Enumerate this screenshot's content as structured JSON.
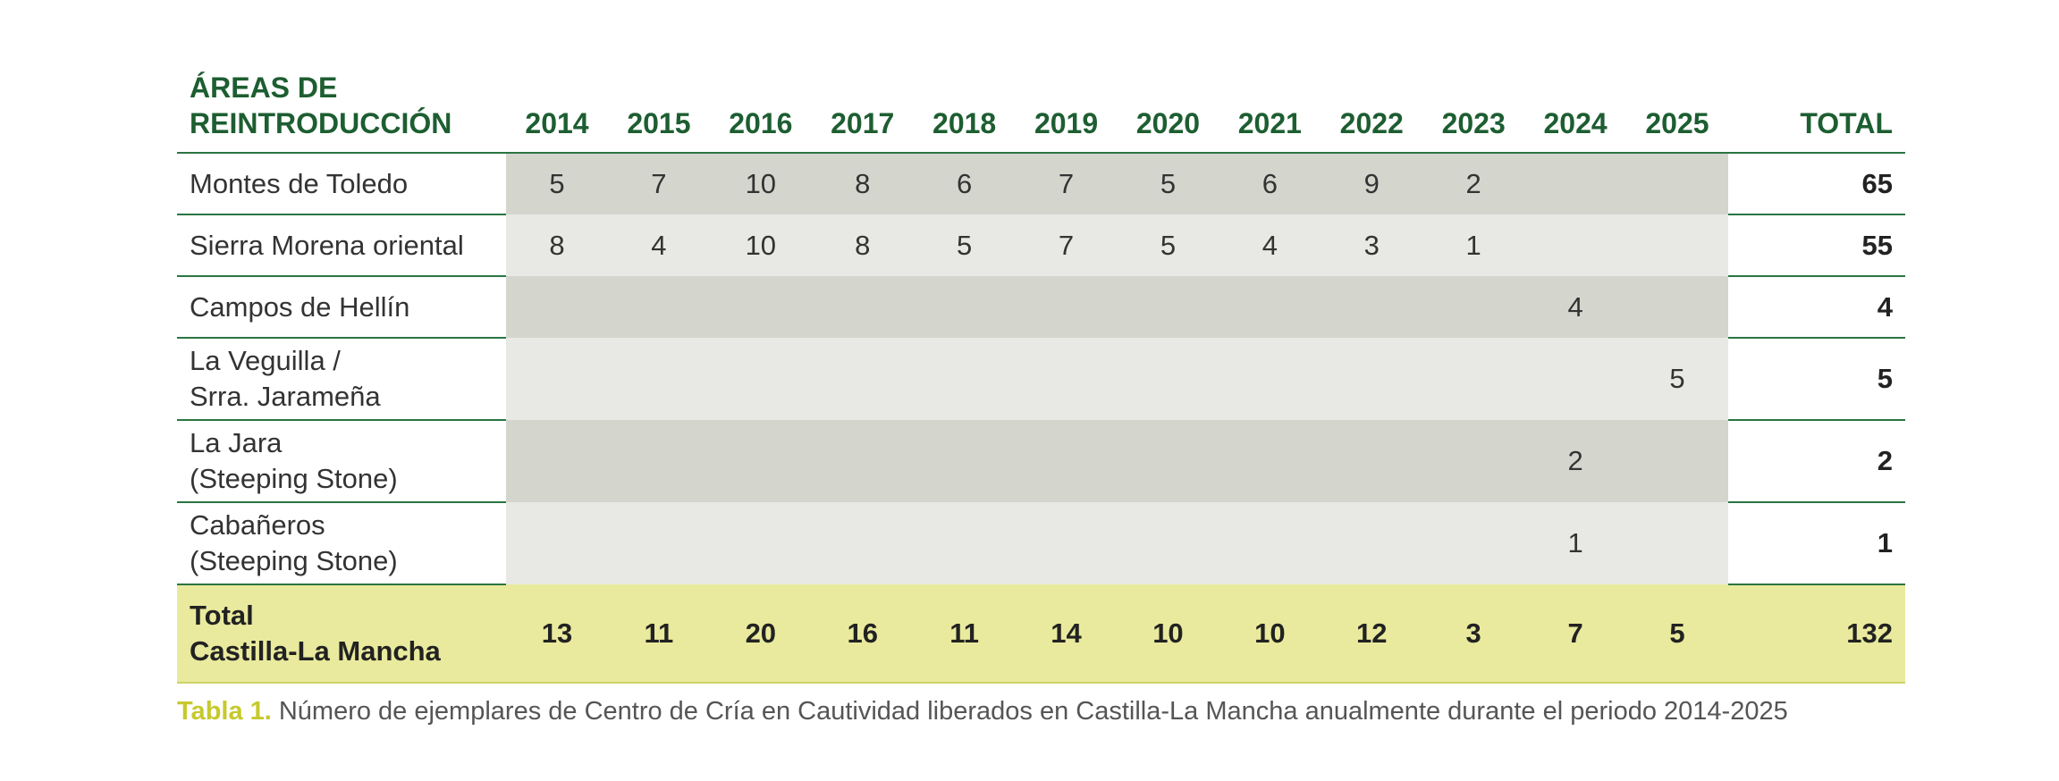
{
  "table": {
    "header": {
      "label": [
        "ÁREAS DE",
        "REINTRODUCCIÓN"
      ],
      "years": [
        "2014",
        "2015",
        "2016",
        "2017",
        "2018",
        "2019",
        "2020",
        "2021",
        "2022",
        "2023",
        "2024",
        "2025"
      ],
      "total": "TOTAL"
    },
    "rows": [
      {
        "label": [
          "Montes de Toledo"
        ],
        "values": [
          5,
          7,
          10,
          8,
          6,
          7,
          5,
          6,
          9,
          2,
          null,
          null
        ],
        "total": 65
      },
      {
        "label": [
          "Sierra Morena oriental"
        ],
        "values": [
          8,
          4,
          10,
          8,
          5,
          7,
          5,
          4,
          3,
          1,
          null,
          null
        ],
        "total": 55
      },
      {
        "label": [
          "Campos de Hellín"
        ],
        "values": [
          null,
          null,
          null,
          null,
          null,
          null,
          null,
          null,
          null,
          null,
          4,
          null
        ],
        "total": 4
      },
      {
        "label": [
          "La Veguilla /",
          "Srra. Jarameña"
        ],
        "values": [
          null,
          null,
          null,
          null,
          null,
          null,
          null,
          null,
          null,
          null,
          null,
          5
        ],
        "total": 5
      },
      {
        "label": [
          "La Jara",
          "(Steeping Stone)"
        ],
        "values": [
          null,
          null,
          null,
          null,
          null,
          null,
          null,
          null,
          null,
          null,
          2,
          null
        ],
        "total": 2
      },
      {
        "label": [
          "Cabañeros",
          "(Steeping Stone)"
        ],
        "values": [
          null,
          null,
          null,
          null,
          null,
          null,
          null,
          null,
          null,
          null,
          1,
          null
        ],
        "total": 1
      }
    ],
    "total_row": {
      "label": [
        "Total",
        "Castilla-La Mancha"
      ],
      "values": [
        13,
        11,
        20,
        16,
        11,
        14,
        10,
        10,
        12,
        3,
        7,
        5
      ],
      "total": 132
    },
    "caption": {
      "label": "Tabla 1.",
      "text": "Número de ejemplares de Centro de Cría en Cautividad liberados en Castilla-La Mancha anualmente durante el periodo 2014-2025"
    }
  }
}
